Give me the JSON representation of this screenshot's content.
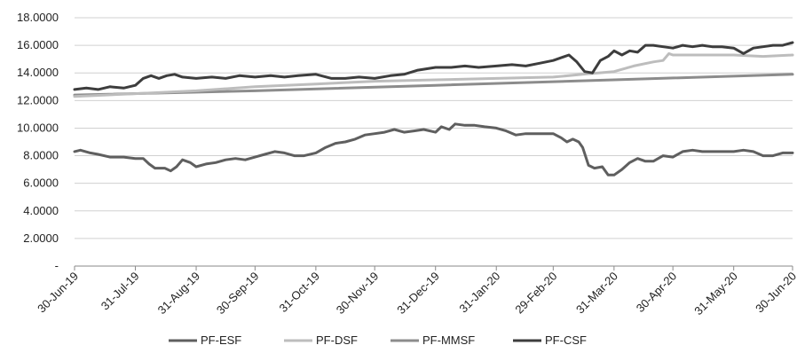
{
  "chart_data": {
    "type": "line",
    "title": "",
    "xlabel": "",
    "ylabel": "",
    "ylim": [
      0,
      18
    ],
    "yticks": [
      {
        "value": 0,
        "label": "-"
      },
      {
        "value": 2,
        "label": "2.0000"
      },
      {
        "value": 4,
        "label": "4.0000"
      },
      {
        "value": 6,
        "label": "6.0000"
      },
      {
        "value": 8,
        "label": "8.0000"
      },
      {
        "value": 10,
        "label": "10.0000"
      },
      {
        "value": 12,
        "label": "12.0000"
      },
      {
        "value": 14,
        "label": "14.0000"
      },
      {
        "value": 16,
        "label": "16.0000"
      },
      {
        "value": 18,
        "label": "18.0000"
      }
    ],
    "x_range": [
      "2019-06-30",
      "2020-06-30"
    ],
    "xticks": [
      {
        "date": "2019-06-30",
        "label": "30-Jun-19"
      },
      {
        "date": "2019-07-31",
        "label": "31-Jul-19"
      },
      {
        "date": "2019-08-31",
        "label": "31-Aug-19"
      },
      {
        "date": "2019-09-30",
        "label": "30-Sep-19"
      },
      {
        "date": "2019-10-31",
        "label": "31-Oct-19"
      },
      {
        "date": "2019-11-30",
        "label": "30-Nov-19"
      },
      {
        "date": "2019-12-31",
        "label": "31-Dec-19"
      },
      {
        "date": "2020-01-31",
        "label": "31-Jan-20"
      },
      {
        "date": "2020-02-29",
        "label": "29-Feb-20"
      },
      {
        "date": "2020-03-31",
        "label": "31-Mar-20"
      },
      {
        "date": "2020-04-30",
        "label": "30-Apr-20"
      },
      {
        "date": "2020-05-31",
        "label": "31-May-20"
      },
      {
        "date": "2020-06-30",
        "label": "30-Jun-20"
      }
    ],
    "grid": "horizontal",
    "legend_position": "bottom",
    "series": [
      {
        "name": "PF-ESF",
        "color": "#5f5f5f",
        "width": 3,
        "points": [
          [
            "2019-06-30",
            8.3
          ],
          [
            "2019-07-03",
            8.4
          ],
          [
            "2019-07-08",
            8.2
          ],
          [
            "2019-07-12",
            8.1
          ],
          [
            "2019-07-18",
            7.9
          ],
          [
            "2019-07-25",
            7.9
          ],
          [
            "2019-07-31",
            7.8
          ],
          [
            "2019-08-04",
            7.8
          ],
          [
            "2019-08-07",
            7.4
          ],
          [
            "2019-08-10",
            7.1
          ],
          [
            "2019-08-15",
            7.1
          ],
          [
            "2019-08-18",
            6.9
          ],
          [
            "2019-08-21",
            7.2
          ],
          [
            "2019-08-24",
            7.7
          ],
          [
            "2019-08-28",
            7.5
          ],
          [
            "2019-08-31",
            7.2
          ],
          [
            "2019-09-05",
            7.4
          ],
          [
            "2019-09-10",
            7.5
          ],
          [
            "2019-09-15",
            7.7
          ],
          [
            "2019-09-20",
            7.8
          ],
          [
            "2019-09-25",
            7.7
          ],
          [
            "2019-09-30",
            7.9
          ],
          [
            "2019-10-05",
            8.1
          ],
          [
            "2019-10-10",
            8.3
          ],
          [
            "2019-10-15",
            8.2
          ],
          [
            "2019-10-20",
            8.0
          ],
          [
            "2019-10-25",
            8.0
          ],
          [
            "2019-10-31",
            8.2
          ],
          [
            "2019-11-05",
            8.6
          ],
          [
            "2019-11-10",
            8.9
          ],
          [
            "2019-11-15",
            9.0
          ],
          [
            "2019-11-20",
            9.2
          ],
          [
            "2019-11-25",
            9.5
          ],
          [
            "2019-11-30",
            9.6
          ],
          [
            "2019-12-05",
            9.7
          ],
          [
            "2019-12-10",
            9.9
          ],
          [
            "2019-12-15",
            9.7
          ],
          [
            "2019-12-20",
            9.8
          ],
          [
            "2019-12-25",
            9.9
          ],
          [
            "2019-12-31",
            9.7
          ],
          [
            "2020-01-03",
            10.1
          ],
          [
            "2020-01-07",
            9.9
          ],
          [
            "2020-01-10",
            10.3
          ],
          [
            "2020-01-15",
            10.2
          ],
          [
            "2020-01-20",
            10.2
          ],
          [
            "2020-01-25",
            10.1
          ],
          [
            "2020-01-31",
            10.0
          ],
          [
            "2020-02-05",
            9.8
          ],
          [
            "2020-02-10",
            9.5
          ],
          [
            "2020-02-15",
            9.6
          ],
          [
            "2020-02-20",
            9.6
          ],
          [
            "2020-02-25",
            9.6
          ],
          [
            "2020-02-29",
            9.6
          ],
          [
            "2020-03-04",
            9.3
          ],
          [
            "2020-03-07",
            9.0
          ],
          [
            "2020-03-10",
            9.2
          ],
          [
            "2020-03-13",
            9.0
          ],
          [
            "2020-03-15",
            8.6
          ],
          [
            "2020-03-18",
            7.3
          ],
          [
            "2020-03-21",
            7.1
          ],
          [
            "2020-03-25",
            7.2
          ],
          [
            "2020-03-28",
            6.6
          ],
          [
            "2020-03-31",
            6.6
          ],
          [
            "2020-04-04",
            7.0
          ],
          [
            "2020-04-08",
            7.5
          ],
          [
            "2020-04-12",
            7.8
          ],
          [
            "2020-04-16",
            7.6
          ],
          [
            "2020-04-20",
            7.6
          ],
          [
            "2020-04-25",
            8.0
          ],
          [
            "2020-04-30",
            7.9
          ],
          [
            "2020-05-05",
            8.3
          ],
          [
            "2020-05-10",
            8.4
          ],
          [
            "2020-05-15",
            8.3
          ],
          [
            "2020-05-20",
            8.3
          ],
          [
            "2020-05-25",
            8.3
          ],
          [
            "2020-05-31",
            8.3
          ],
          [
            "2020-06-05",
            8.4
          ],
          [
            "2020-06-10",
            8.3
          ],
          [
            "2020-06-15",
            8.0
          ],
          [
            "2020-06-20",
            8.0
          ],
          [
            "2020-06-25",
            8.2
          ],
          [
            "2020-06-30",
            8.2
          ]
        ]
      },
      {
        "name": "PF-DSF",
        "color": "#bdbdbd",
        "width": 3,
        "points": [
          [
            "2019-06-30",
            12.3
          ],
          [
            "2019-07-31",
            12.5
          ],
          [
            "2019-08-31",
            12.7
          ],
          [
            "2019-09-30",
            13.0
          ],
          [
            "2019-10-31",
            13.2
          ],
          [
            "2019-11-30",
            13.4
          ],
          [
            "2019-12-31",
            13.5
          ],
          [
            "2020-01-31",
            13.6
          ],
          [
            "2020-02-29",
            13.7
          ],
          [
            "2020-03-15",
            13.9
          ],
          [
            "2020-03-31",
            14.1
          ],
          [
            "2020-04-10",
            14.5
          ],
          [
            "2020-04-20",
            14.8
          ],
          [
            "2020-04-25",
            14.9
          ],
          [
            "2020-04-28",
            15.4
          ],
          [
            "2020-04-30",
            15.3
          ],
          [
            "2020-05-10",
            15.3
          ],
          [
            "2020-05-20",
            15.3
          ],
          [
            "2020-05-31",
            15.3
          ],
          [
            "2020-06-15",
            15.2
          ],
          [
            "2020-06-30",
            15.3
          ]
        ]
      },
      {
        "name": "PF-MMSF",
        "color": "#8c8c8c",
        "width": 3,
        "points": [
          [
            "2019-06-30",
            12.4
          ],
          [
            "2019-09-30",
            12.7
          ],
          [
            "2019-12-31",
            13.1
          ],
          [
            "2020-03-31",
            13.5
          ],
          [
            "2020-06-30",
            13.9
          ]
        ]
      },
      {
        "name": "PF-CSF",
        "color": "#3d3d3d",
        "width": 3,
        "points": [
          [
            "2019-06-30",
            12.8
          ],
          [
            "2019-07-06",
            12.9
          ],
          [
            "2019-07-12",
            12.8
          ],
          [
            "2019-07-18",
            13.0
          ],
          [
            "2019-07-25",
            12.9
          ],
          [
            "2019-07-31",
            13.1
          ],
          [
            "2019-08-04",
            13.6
          ],
          [
            "2019-08-08",
            13.8
          ],
          [
            "2019-08-12",
            13.6
          ],
          [
            "2019-08-16",
            13.8
          ],
          [
            "2019-08-20",
            13.9
          ],
          [
            "2019-08-24",
            13.7
          ],
          [
            "2019-08-31",
            13.6
          ],
          [
            "2019-09-08",
            13.7
          ],
          [
            "2019-09-15",
            13.6
          ],
          [
            "2019-09-22",
            13.8
          ],
          [
            "2019-09-30",
            13.7
          ],
          [
            "2019-10-08",
            13.8
          ],
          [
            "2019-10-15",
            13.7
          ],
          [
            "2019-10-22",
            13.8
          ],
          [
            "2019-10-31",
            13.9
          ],
          [
            "2019-11-08",
            13.6
          ],
          [
            "2019-11-15",
            13.6
          ],
          [
            "2019-11-22",
            13.7
          ],
          [
            "2019-11-30",
            13.6
          ],
          [
            "2019-12-08",
            13.8
          ],
          [
            "2019-12-15",
            13.9
          ],
          [
            "2019-12-22",
            14.2
          ],
          [
            "2019-12-31",
            14.4
          ],
          [
            "2020-01-08",
            14.4
          ],
          [
            "2020-01-15",
            14.5
          ],
          [
            "2020-01-22",
            14.4
          ],
          [
            "2020-01-31",
            14.5
          ],
          [
            "2020-02-08",
            14.6
          ],
          [
            "2020-02-15",
            14.5
          ],
          [
            "2020-02-22",
            14.7
          ],
          [
            "2020-02-29",
            14.9
          ],
          [
            "2020-03-04",
            15.1
          ],
          [
            "2020-03-08",
            15.3
          ],
          [
            "2020-03-12",
            14.8
          ],
          [
            "2020-03-16",
            14.1
          ],
          [
            "2020-03-20",
            14.0
          ],
          [
            "2020-03-24",
            14.9
          ],
          [
            "2020-03-28",
            15.2
          ],
          [
            "2020-03-31",
            15.6
          ],
          [
            "2020-04-04",
            15.3
          ],
          [
            "2020-04-08",
            15.6
          ],
          [
            "2020-04-12",
            15.5
          ],
          [
            "2020-04-16",
            16.0
          ],
          [
            "2020-04-20",
            16.0
          ],
          [
            "2020-04-25",
            15.9
          ],
          [
            "2020-04-30",
            15.8
          ],
          [
            "2020-05-05",
            16.0
          ],
          [
            "2020-05-10",
            15.9
          ],
          [
            "2020-05-15",
            16.0
          ],
          [
            "2020-05-20",
            15.9
          ],
          [
            "2020-05-25",
            15.9
          ],
          [
            "2020-05-31",
            15.8
          ],
          [
            "2020-06-05",
            15.4
          ],
          [
            "2020-06-10",
            15.8
          ],
          [
            "2020-06-15",
            15.9
          ],
          [
            "2020-06-20",
            16.0
          ],
          [
            "2020-06-25",
            16.0
          ],
          [
            "2020-06-30",
            16.2
          ]
        ]
      }
    ]
  }
}
